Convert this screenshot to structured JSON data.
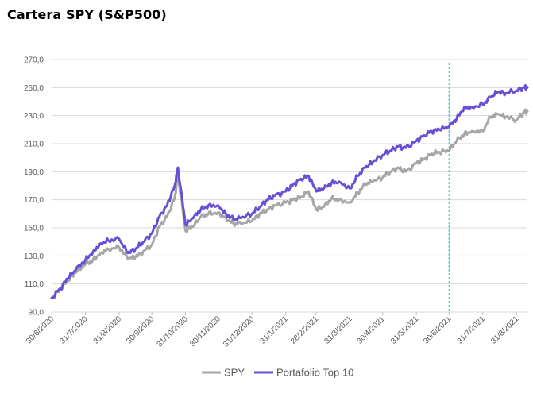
{
  "title": "Cartera SPY (S&P500)",
  "chart_data": {
    "type": "line",
    "title": "Cartera SPY (S&P500)",
    "xlabel": "",
    "ylabel": "",
    "ylim": [
      90,
      270
    ],
    "y_ticks": [
      "90,0",
      "110,0",
      "130,0",
      "150,0",
      "170,0",
      "190,0",
      "210,0",
      "230,0",
      "250,0",
      "270,0"
    ],
    "x_ticks": [
      "30/6/2020",
      "31/7/2020",
      "31/8/2020",
      "30/9/2020",
      "31/10/2020",
      "30/11/2020",
      "31/12/2020",
      "31/1/2021",
      "28/2/2021",
      "31/3/2021",
      "30/4/2021",
      "31/5/2021",
      "30/6/2021",
      "31/7/2021",
      "31/8/2021"
    ],
    "grid": true,
    "legend_position": "bottom",
    "vertical_marker": {
      "x": "30/6/2021",
      "color": "#40d0d0",
      "style": "dashed"
    },
    "x": [
      "30/6/2020",
      "8/7/2020",
      "15/7/2020",
      "22/7/2020",
      "31/7/2020",
      "7/8/2020",
      "14/8/2020",
      "21/8/2020",
      "31/8/2020",
      "8/9/2020",
      "15/9/2020",
      "22/9/2020",
      "30/9/2020",
      "7/10/2020",
      "14/10/2020",
      "21/10/2020",
      "24/10/2020",
      "31/10/2020",
      "7/11/2020",
      "14/11/2020",
      "21/11/2020",
      "30/11/2020",
      "7/12/2020",
      "14/12/2020",
      "21/12/2020",
      "31/12/2020",
      "7/1/2021",
      "14/1/2021",
      "21/1/2021",
      "31/1/2021",
      "7/2/2021",
      "14/2/2021",
      "21/2/2021",
      "28/2/2021",
      "7/3/2021",
      "14/3/2021",
      "21/3/2021",
      "31/3/2021",
      "7/4/2021",
      "14/4/2021",
      "21/4/2021",
      "30/4/2021",
      "7/5/2021",
      "14/5/2021",
      "21/5/2021",
      "31/5/2021",
      "7/6/2021",
      "14/6/2021",
      "21/6/2021",
      "30/6/2021",
      "7/7/2021",
      "14/7/2021",
      "21/7/2021",
      "31/7/2021",
      "7/8/2021",
      "14/8/2021",
      "21/8/2021",
      "31/8/2021",
      "7/9/2021",
      "10/9/2021"
    ],
    "series": [
      {
        "name": "SPY",
        "color": "#a6a6a6",
        "values": [
          100,
          106,
          113,
          118,
          124,
          127,
          132,
          135,
          136,
          128,
          129,
          133,
          138,
          151,
          158,
          171,
          188,
          148,
          151,
          158,
          160,
          161,
          157,
          153,
          153,
          155,
          160,
          163,
          166,
          168,
          170,
          172,
          176,
          163,
          165,
          171,
          170,
          168,
          175,
          181,
          183,
          186,
          190,
          193,
          190,
          196,
          199,
          203,
          204,
          205,
          212,
          217,
          219,
          219,
          229,
          231,
          229,
          227,
          233,
          233
        ],
        "aria": "gray series"
      },
      {
        "name": "Portafolio Top 10",
        "color": "#6a4fd6",
        "values": [
          100,
          107,
          114,
          120,
          127,
          133,
          139,
          141,
          142,
          132,
          135,
          140,
          146,
          158,
          166,
          180,
          193,
          152,
          157,
          163,
          166,
          166,
          160,
          156,
          157,
          160,
          165,
          170,
          173,
          176,
          181,
          185,
          187,
          176,
          178,
          182,
          183,
          178,
          187,
          193,
          197,
          202,
          205,
          208,
          207,
          212,
          216,
          219,
          220,
          222,
          228,
          236,
          236,
          238,
          243,
          247,
          246,
          248,
          250,
          250
        ]
      }
    ]
  }
}
